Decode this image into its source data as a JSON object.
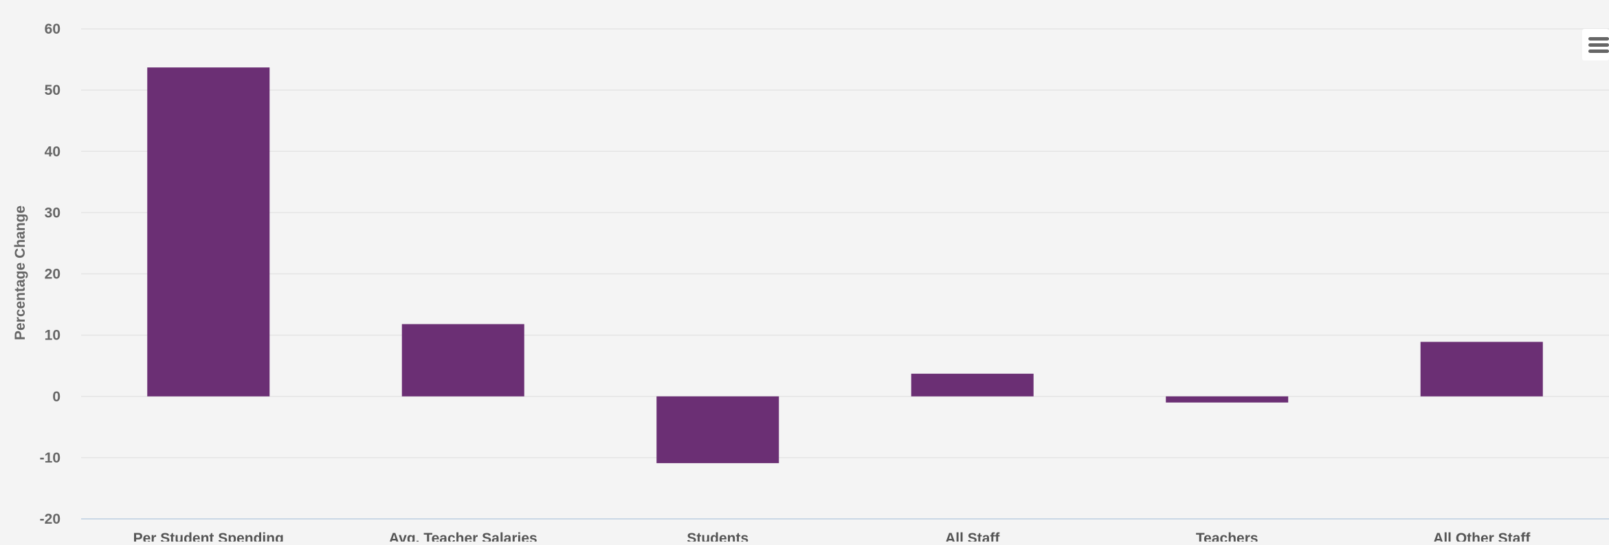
{
  "chart_data": {
    "type": "bar",
    "categories": [
      "Per Student Spending",
      "Avg. Teacher Salaries",
      "Students",
      "All Staff",
      "Teachers",
      "All Other Staff"
    ],
    "values": [
      53.7,
      11.8,
      -10.9,
      3.7,
      -1.0,
      8.9
    ],
    "title": "",
    "xlabel": "",
    "ylabel": "Percentage Change",
    "ylim": [
      -20,
      60
    ],
    "yticks": [
      -20,
      -10,
      0,
      10,
      20,
      30,
      40,
      50,
      60
    ],
    "grid": true,
    "bar_color": "#6b2f74"
  },
  "toolbar": {
    "menu_icon": "hamburger-menu-icon"
  }
}
